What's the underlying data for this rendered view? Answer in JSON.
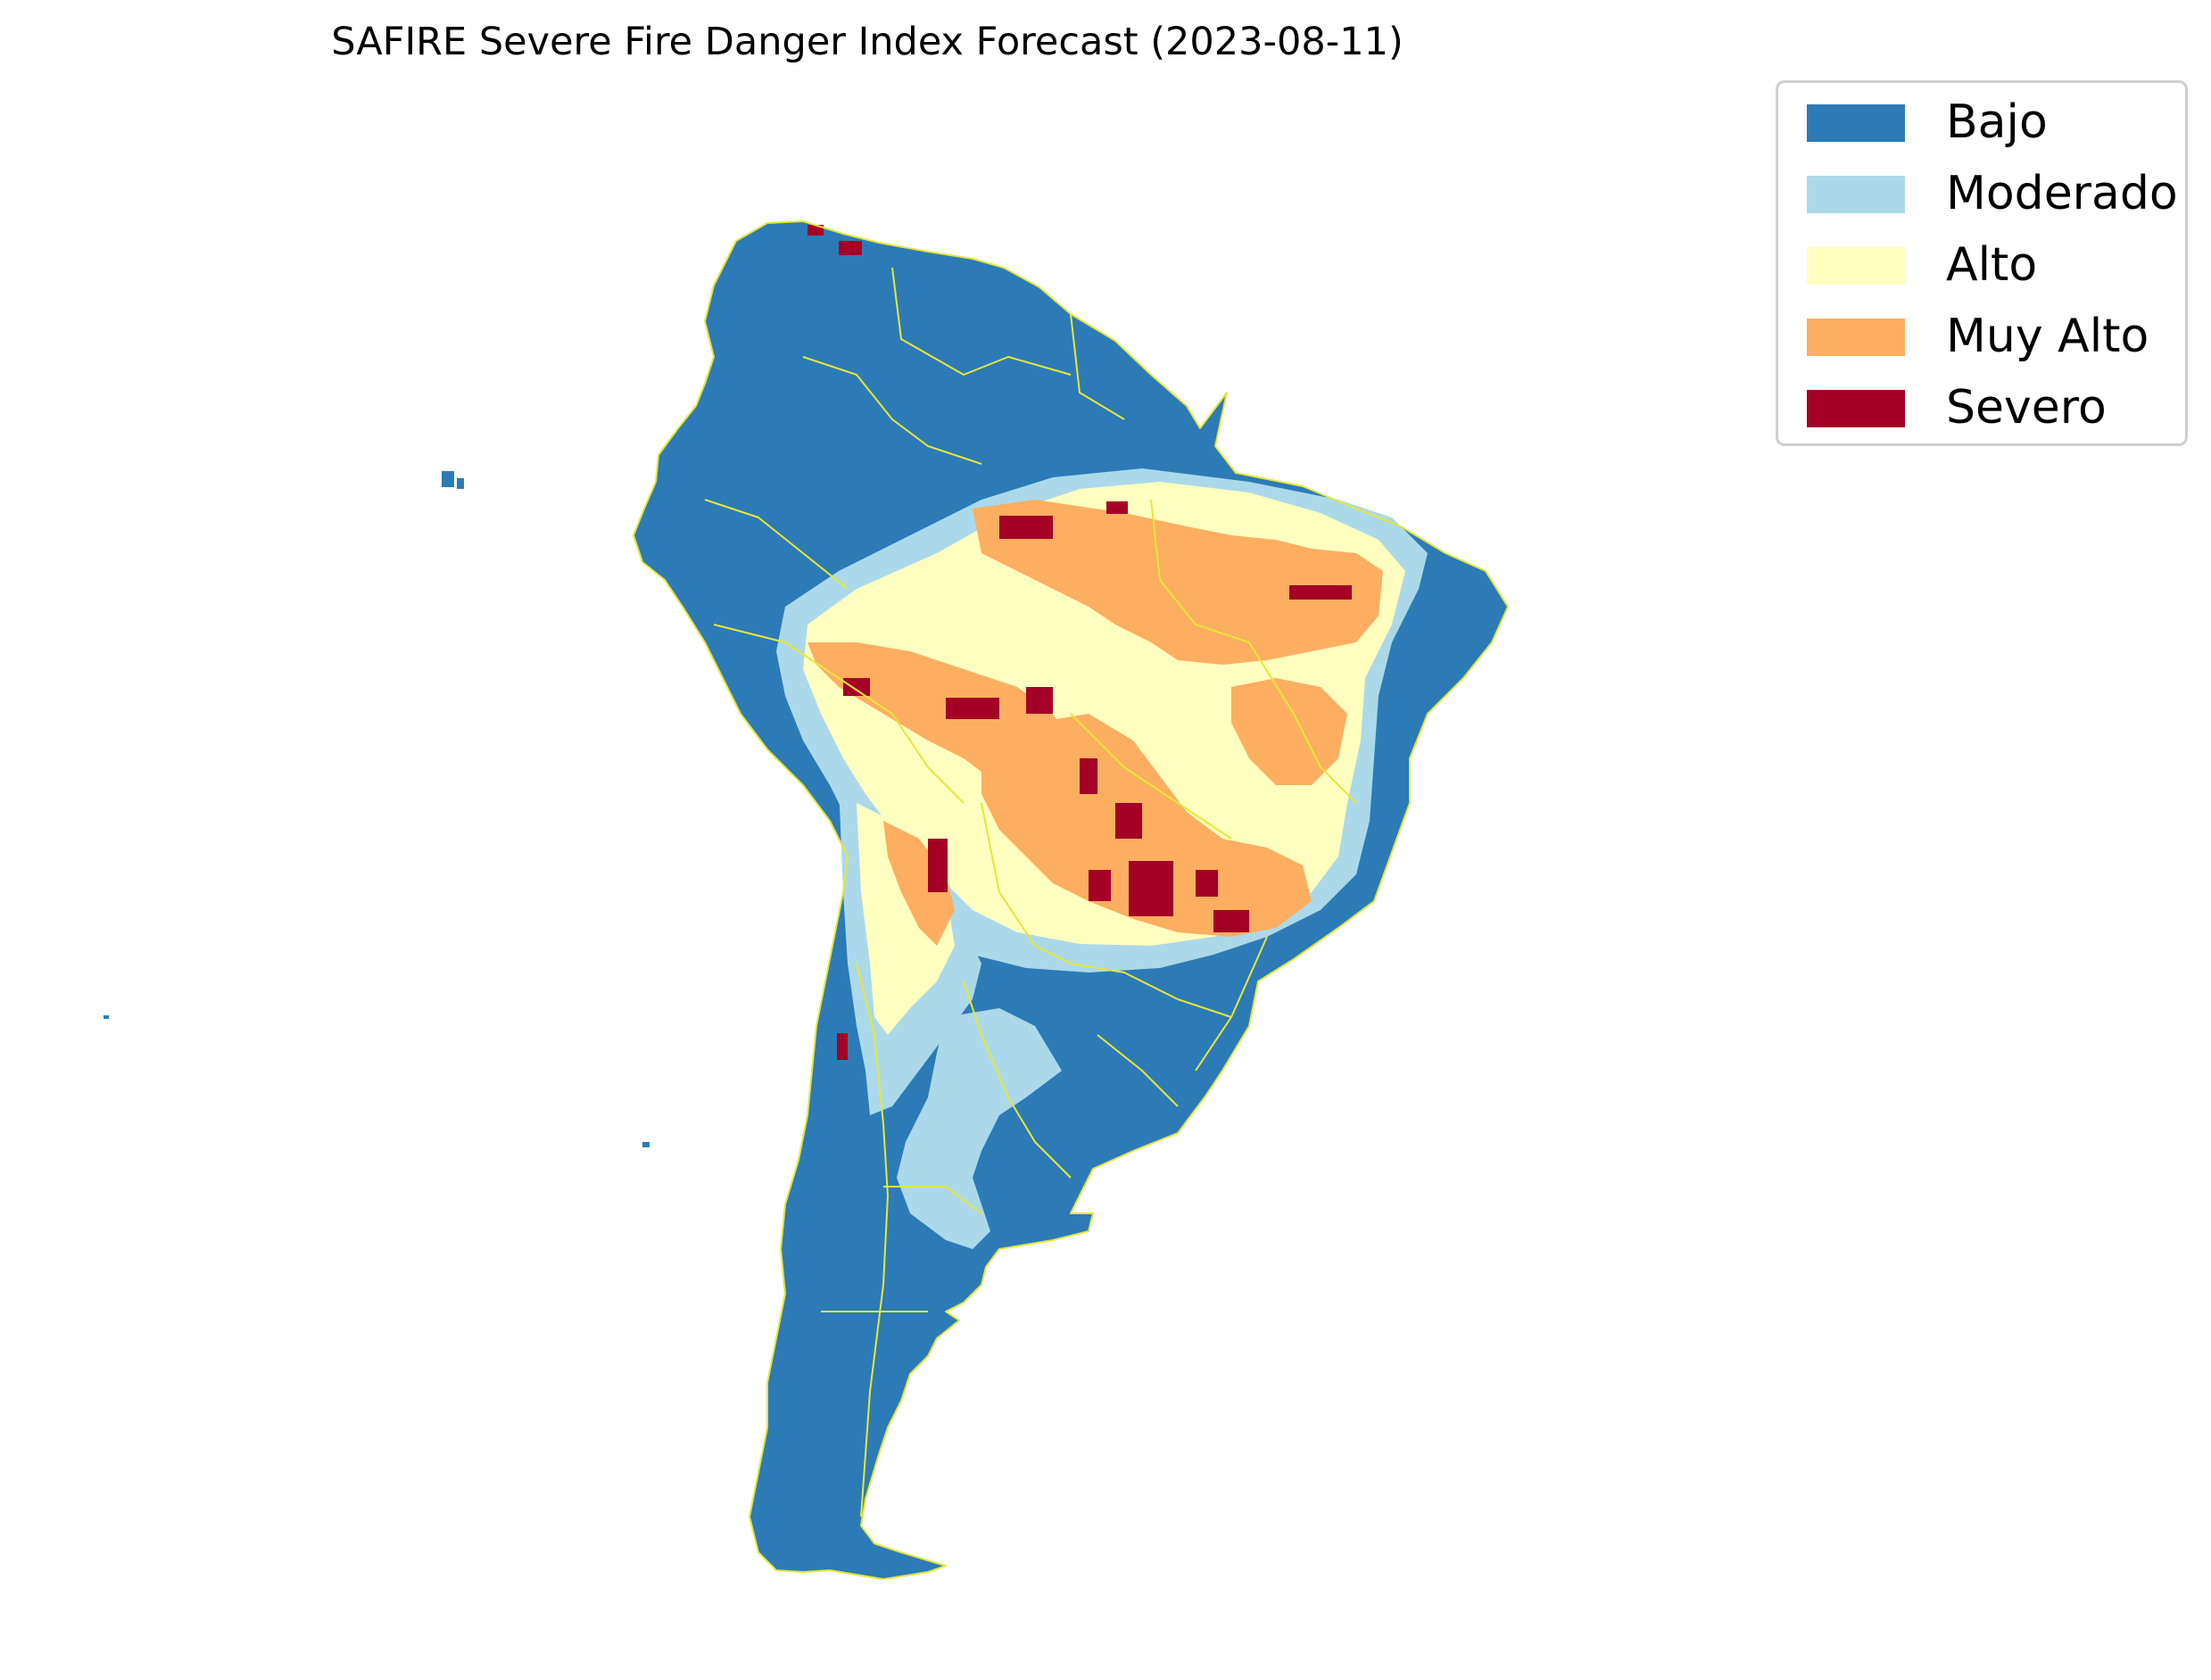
{
  "title": "SAFIRE Severe Fire Danger Index Forecast (2023-08-11)",
  "legend": {
    "items": [
      {
        "label": "Bajo",
        "color": "#2c7bb6"
      },
      {
        "label": "Moderado",
        "color": "#abd9e9"
      },
      {
        "label": "Alto",
        "color": "#ffffbf"
      },
      {
        "label": "Muy Alto",
        "color": "#fdae61"
      },
      {
        "label": "Severo",
        "color": "#a50026"
      }
    ]
  },
  "map": {
    "region": "South America",
    "boundary_color": "#e6e639"
  }
}
